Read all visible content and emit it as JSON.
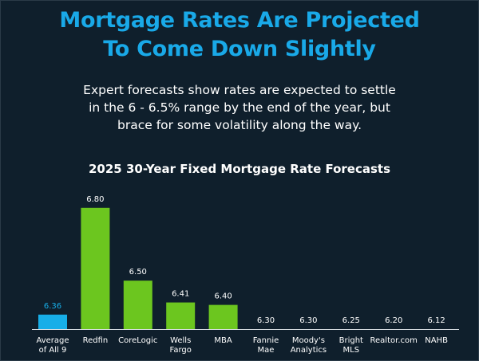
{
  "headline": {
    "line1": "Mortgage Rates Are Projected",
    "line2": "To Come Down Slightly"
  },
  "subtitle": {
    "line1": "Expert forecasts show rates are expected to settle",
    "line2": "in the 6 - 6.5% range by the end of the year, but",
    "line3": "brace for some volatility along the way."
  },
  "colors": {
    "background": "#0f1f2c",
    "headline": "#19a9e8",
    "average_bar": "#17aee8",
    "lender_bar": "#6cc61f"
  },
  "chart_data": {
    "type": "bar",
    "title": "2025 30-Year Fixed Mortgage Rate Forecasts",
    "xlabel": "",
    "ylabel": "",
    "ylim": [
      0,
      6.8
    ],
    "grid": false,
    "categories": [
      [
        "Average",
        "of All 9"
      ],
      [
        "Redfin"
      ],
      [
        "CoreLogic"
      ],
      [
        "Wells",
        "Fargo"
      ],
      [
        "MBA"
      ],
      [
        "Fannie",
        "Mae"
      ],
      [
        "Moody's",
        "Analytics"
      ],
      [
        "Bright",
        "MLS"
      ],
      [
        "Realtor.com"
      ],
      [
        "NAHB"
      ]
    ],
    "values": [
      6.36,
      6.8,
      6.5,
      6.41,
      6.4,
      6.3,
      6.3,
      6.25,
      6.2,
      6.12
    ],
    "value_labels": [
      "6.36",
      "6.80",
      "6.50",
      "6.41",
      "6.40",
      "6.30",
      "6.30",
      "6.25",
      "6.20",
      "6.12"
    ],
    "highlight_index": 0
  }
}
